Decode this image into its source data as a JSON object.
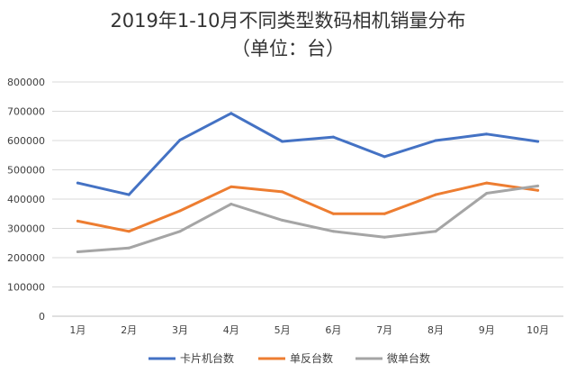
{
  "chart_data": {
    "type": "line",
    "title": "2019年1-10月不同类型数码相机销量分布",
    "subtitle": "（单位：台）",
    "xlabel": "",
    "ylabel": "",
    "categories": [
      "1月",
      "2月",
      "3月",
      "4月",
      "5月",
      "6月",
      "7月",
      "8月",
      "9月",
      "10月"
    ],
    "ylim": [
      0,
      800000
    ],
    "yticks": [
      0,
      100000,
      200000,
      300000,
      400000,
      500000,
      600000,
      700000,
      800000
    ],
    "grid": true,
    "legend_position": "bottom",
    "series": [
      {
        "name": "卡片机台数",
        "color": "#4472C4",
        "values": [
          455000,
          415000,
          602000,
          693000,
          597000,
          612000,
          545000,
          600000,
          622000,
          597000
        ]
      },
      {
        "name": "单反台数",
        "color": "#ED7D31",
        "values": [
          325000,
          290000,
          360000,
          442000,
          425000,
          350000,
          350000,
          415000,
          455000,
          430000
        ]
      },
      {
        "name": "微单台数",
        "color": "#A5A5A5",
        "values": [
          220000,
          233000,
          290000,
          383000,
          328000,
          290000,
          270000,
          290000,
          420000,
          445000
        ]
      }
    ]
  }
}
